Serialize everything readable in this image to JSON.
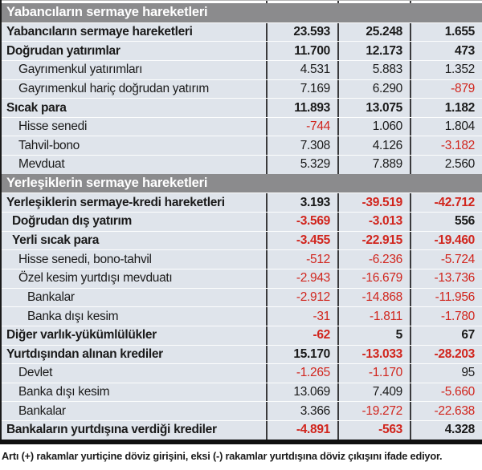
{
  "colors": {
    "header_bg": "#8b8b8d",
    "row_bg": "#dfe4eb",
    "negative": "#d1251d",
    "text": "#1a1a1a",
    "divider": "#3a3a3c"
  },
  "chart_data": {
    "type": "table",
    "column_headers_visible": false,
    "sections": [
      {
        "header": "Yabancıların sermaye hareketleri",
        "rows": [
          {
            "label": "Yabancıların sermaye hareketleri",
            "bold": true,
            "indent": 0,
            "values": [
              "23.593",
              "25.248",
              "1.655"
            ]
          },
          {
            "label": "Doğrudan yatırımlar",
            "bold": true,
            "indent": 0,
            "values": [
              "11.700",
              "12.173",
              "473"
            ]
          },
          {
            "label": "Gayrımenkul yatırımları",
            "bold": false,
            "indent": 2,
            "values": [
              "4.531",
              "5.883",
              "1.352"
            ]
          },
          {
            "label": "Gayrımenkul hariç doğrudan yatırım",
            "bold": false,
            "indent": 2,
            "values": [
              "7.169",
              "6.290",
              "-879"
            ]
          },
          {
            "label": "Sıcak para",
            "bold": true,
            "indent": 0,
            "values": [
              "11.893",
              "13.075",
              "1.182"
            ]
          },
          {
            "label": "Hisse senedi",
            "bold": false,
            "indent": 2,
            "values": [
              "-744",
              "1.060",
              "1.804"
            ]
          },
          {
            "label": "Tahvil-bono",
            "bold": false,
            "indent": 2,
            "values": [
              "7.308",
              "4.126",
              "-3.182"
            ]
          },
          {
            "label": "Mevduat",
            "bold": false,
            "indent": 2,
            "values": [
              "5.329",
              "7.889",
              "2.560"
            ]
          }
        ]
      },
      {
        "header": "Yerleşiklerin sermaye hareketleri",
        "rows": [
          {
            "label": "Yerleşiklerin sermaye-kredi hareketleri",
            "bold": true,
            "indent": 0,
            "values": [
              "3.193",
              "-39.519",
              "-42.712"
            ]
          },
          {
            "label": "Doğrudan dış yatırım",
            "bold": true,
            "indent": 1,
            "values": [
              "-3.569",
              "-3.013",
              "556"
            ]
          },
          {
            "label": "Yerli sıcak para",
            "bold": true,
            "indent": 1,
            "values": [
              "-3.455",
              "-22.915",
              "-19.460"
            ]
          },
          {
            "label": "Hisse senedi, bono-tahvil",
            "bold": false,
            "indent": 2,
            "values": [
              "-512",
              "-6.236",
              "-5.724"
            ]
          },
          {
            "label": "Özel kesim yurtdışı mevduatı",
            "bold": false,
            "indent": 2,
            "values": [
              "-2.943",
              "-16.679",
              "-13.736"
            ]
          },
          {
            "label": "Bankalar",
            "bold": false,
            "indent": 3,
            "values": [
              "-2.912",
              "-14.868",
              "-11.956"
            ]
          },
          {
            "label": "Banka dışı kesim",
            "bold": false,
            "indent": 3,
            "values": [
              "-31",
              "-1.811",
              "-1.780"
            ]
          },
          {
            "label": "Diğer varlık-yükümlülükler",
            "bold": true,
            "indent": 0,
            "values": [
              "-62",
              "5",
              "67"
            ]
          },
          {
            "label": "Yurtdışından alınan krediler",
            "bold": true,
            "indent": 0,
            "values": [
              "15.170",
              "-13.033",
              "-28.203"
            ]
          },
          {
            "label": "Devlet",
            "bold": false,
            "indent": 2,
            "values": [
              "-1.265",
              "-1.170",
              "95"
            ]
          },
          {
            "label": "Banka dışı kesim",
            "bold": false,
            "indent": 2,
            "values": [
              "13.069",
              "7.409",
              "-5.660"
            ]
          },
          {
            "label": "Bankalar",
            "bold": false,
            "indent": 2,
            "values": [
              "3.366",
              "-19.272",
              "-22.638"
            ]
          },
          {
            "label": "Bankaların yurtdışına verdiği krediler",
            "bold": true,
            "indent": 0,
            "values": [
              "-4.891",
              "-563",
              "4.328"
            ]
          }
        ]
      }
    ],
    "footnote": "Artı (+) rakamlar yurtiçine döviz girişini, eksi (-) rakamlar yurtdışına döviz çıkışını ifade ediyor."
  }
}
